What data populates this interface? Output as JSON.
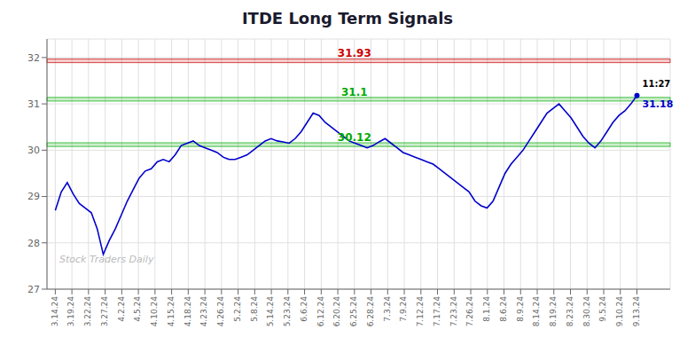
{
  "chart_data": {
    "type": "line",
    "title": "ITDE Long Term Signals",
    "color": "#0000cc",
    "xlim": [
      -0.5,
      37
    ],
    "xticks": [
      {
        "value": 0,
        "label": "3.14.24"
      },
      {
        "value": 1,
        "label": "3.19.24"
      },
      {
        "value": 2,
        "label": "3.22.24"
      },
      {
        "value": 3,
        "label": "3.27.24"
      },
      {
        "value": 4,
        "label": "4.2.24"
      },
      {
        "value": 5,
        "label": "4.5.24"
      },
      {
        "value": 6,
        "label": "4.10.24"
      },
      {
        "value": 7,
        "label": "4.15.24"
      },
      {
        "value": 8,
        "label": "4.18.24"
      },
      {
        "value": 9,
        "label": "4.23.24"
      },
      {
        "value": 10,
        "label": "4.26.24"
      },
      {
        "value": 11,
        "label": "5.2.24"
      },
      {
        "value": 12,
        "label": "5.8.24"
      },
      {
        "value": 13,
        "label": "5.14.24"
      },
      {
        "value": 14,
        "label": "5.23.24"
      },
      {
        "value": 15,
        "label": "6.6.24"
      },
      {
        "value": 16,
        "label": "6.12.24"
      },
      {
        "value": 17,
        "label": "6.20.24"
      },
      {
        "value": 18,
        "label": "6.25.24"
      },
      {
        "value": 19,
        "label": "6.28.24"
      },
      {
        "value": 20,
        "label": "7.3.24"
      },
      {
        "value": 21,
        "label": "7.9.24"
      },
      {
        "value": 22,
        "label": "7.12.24"
      },
      {
        "value": 23,
        "label": "7.17.24"
      },
      {
        "value": 24,
        "label": "7.23.24"
      },
      {
        "value": 25,
        "label": "7.26.24"
      },
      {
        "value": 26,
        "label": "8.1.24"
      },
      {
        "value": 27,
        "label": "8.6.24"
      },
      {
        "value": 28,
        "label": "8.9.24"
      },
      {
        "value": 29,
        "label": "8.14.24"
      },
      {
        "value": 30,
        "label": "8.19.24"
      },
      {
        "value": 31,
        "label": "8.23.24"
      },
      {
        "value": 32,
        "label": "8.30.24"
      },
      {
        "value": 33,
        "label": "9.5.24"
      },
      {
        "value": 34,
        "label": "9.10.24"
      },
      {
        "value": 35,
        "label": "9.13.24"
      }
    ],
    "ylim": [
      27,
      32.4
    ],
    "yticks": [
      27,
      28,
      29,
      30,
      31,
      32
    ],
    "grid": true,
    "values": [
      28.7,
      29.1,
      29.3,
      29.05,
      28.85,
      28.75,
      28.65,
      28.3,
      27.75,
      28.05,
      28.3,
      28.6,
      28.9,
      29.15,
      29.4,
      29.55,
      29.6,
      29.75,
      29.8,
      29.75,
      29.9,
      30.1,
      30.15,
      30.2,
      30.1,
      30.05,
      30.0,
      29.95,
      29.85,
      29.8,
      29.8,
      29.85,
      29.9,
      30.0,
      30.1,
      30.2,
      30.25,
      30.2,
      30.18,
      30.15,
      30.25,
      30.4,
      30.6,
      30.8,
      30.75,
      30.6,
      30.5,
      30.4,
      30.3,
      30.2,
      30.15,
      30.1,
      30.05,
      30.1,
      30.18,
      30.25,
      30.15,
      30.05,
      29.95,
      29.9,
      29.85,
      29.8,
      29.75,
      29.7,
      29.6,
      29.5,
      29.4,
      29.3,
      29.2,
      29.1,
      28.9,
      28.8,
      28.75,
      28.9,
      29.2,
      29.5,
      29.7,
      29.85,
      30.0,
      30.2,
      30.4,
      30.6,
      30.8,
      30.9,
      31.0,
      30.85,
      30.7,
      30.5,
      30.3,
      30.15,
      30.05,
      30.2,
      30.4,
      30.6,
      30.75,
      30.85,
      31.0,
      31.18
    ],
    "bands": [
      {
        "value": 31.93,
        "color": "#cc0000",
        "label": "31.93"
      },
      {
        "value": 31.1,
        "color": "#00aa00",
        "label": "31.1"
      },
      {
        "value": 30.12,
        "color": "#00aa00",
        "label": "30.12"
      }
    ],
    "last_point": {
      "value": 31.18,
      "label": "31.18",
      "time": "11:27"
    },
    "watermark": "Stock Traders Daily"
  }
}
